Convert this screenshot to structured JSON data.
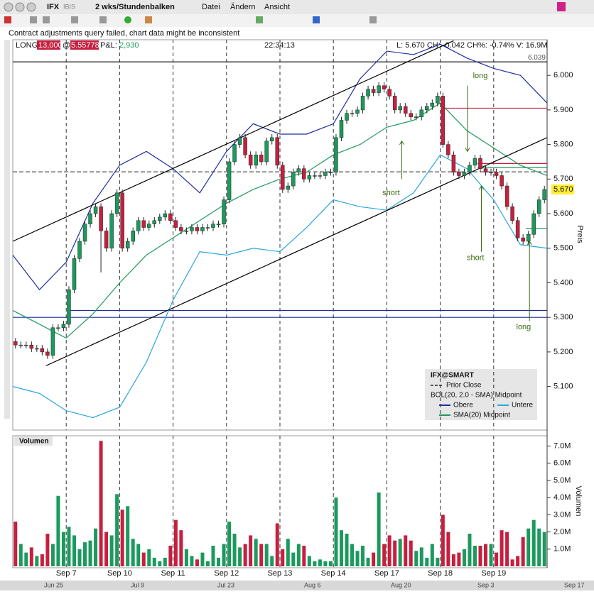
{
  "toolbar": {
    "symbol": "IFX",
    "exchange": "IBIS",
    "period": "2 wks/Stundenbalken",
    "menu": [
      "Datei",
      "Ändern",
      "Ansicht"
    ]
  },
  "message": "Contract adjustments query failed, chart data might be inconsistent",
  "position": {
    "side": "LONG",
    "quantity": "13,000",
    "at": "@",
    "price": "5.55778",
    "pnl_label": "P&L:",
    "pnl": "2,930"
  },
  "time": "22:34:13",
  "quote": "L: 5.670 CH: -0.042 CH%: -0.74% V: 16.9M",
  "chart_data": [
    {
      "type": "candlestick",
      "y_axis_label": "Preis",
      "xlim": [
        0,
        100
      ],
      "ylim": [
        4.974,
        6.103
      ],
      "xticks": [
        {
          "value": 10,
          "label": "Sep 7"
        },
        {
          "value": 20,
          "label": "Sep 10"
        },
        {
          "value": 30,
          "label": "Sep 11"
        },
        {
          "value": 40,
          "label": "Sep 12"
        },
        {
          "value": 50,
          "label": "Sep 13"
        },
        {
          "value": 60,
          "label": "Sep 14"
        },
        {
          "value": 70,
          "label": "Sep 17"
        },
        {
          "value": 80,
          "label": "Sep 18"
        },
        {
          "value": 90,
          "label": "Sep 19"
        }
      ],
      "yticks": [
        {
          "value": 5.1,
          "label": "5.100"
        },
        {
          "value": 5.2,
          "label": "5.200"
        },
        {
          "value": 5.3,
          "label": "5.300"
        },
        {
          "value": 5.4,
          "label": "5.400"
        },
        {
          "value": 5.5,
          "label": "5.500"
        },
        {
          "value": 5.6,
          "label": "5.600"
        },
        {
          "value": 5.7,
          "label": "5.700"
        },
        {
          "value": 5.8,
          "label": "5.800"
        },
        {
          "value": 5.9,
          "label": "5.900"
        },
        {
          "value": 6.0,
          "label": "6.000"
        }
      ],
      "up_color": "#1b9a5e",
      "down_color": "#c61f3f",
      "open": [
        5.23,
        5.22,
        5.22,
        5.22,
        5.21,
        5.21,
        5.2,
        5.19,
        5.27,
        5.27,
        5.28,
        5.38,
        5.47,
        5.52,
        5.57,
        5.6,
        5.62,
        5.55,
        5.5,
        5.6,
        5.66,
        5.5,
        5.52,
        5.55,
        5.58,
        5.56,
        5.57,
        5.58,
        5.59,
        5.6,
        5.58,
        5.56,
        5.55,
        5.55,
        5.56,
        5.55,
        5.56,
        5.56,
        5.57,
        5.57,
        5.64,
        5.75,
        5.8,
        5.82,
        5.77,
        5.74,
        5.77,
        5.75,
        5.81,
        5.82,
        5.74,
        5.67,
        5.68,
        5.72,
        5.73,
        5.7,
        5.71,
        5.71,
        5.71,
        5.72,
        5.72,
        5.82,
        5.87,
        5.89,
        5.89,
        5.9,
        5.94,
        5.96,
        5.95,
        5.97,
        5.96,
        5.94,
        5.9,
        5.91,
        5.89,
        5.88,
        5.88,
        5.9,
        5.91,
        5.92,
        5.94,
        5.8,
        5.77,
        5.72,
        5.71,
        5.72,
        5.74,
        5.76,
        5.73,
        5.72,
        5.72,
        5.71,
        5.68,
        5.62,
        5.58,
        5.53,
        5.52,
        5.54,
        5.6,
        5.64
      ],
      "high": [
        5.24,
        5.23,
        5.23,
        5.23,
        5.22,
        5.22,
        5.21,
        5.28,
        5.28,
        5.29,
        5.39,
        5.48,
        5.53,
        5.58,
        5.61,
        5.63,
        5.63,
        5.56,
        5.61,
        5.67,
        5.67,
        5.53,
        5.56,
        5.59,
        5.59,
        5.58,
        5.59,
        5.6,
        5.61,
        5.61,
        5.59,
        5.57,
        5.56,
        5.57,
        5.57,
        5.57,
        5.57,
        5.58,
        5.58,
        5.65,
        5.76,
        5.81,
        5.83,
        5.83,
        5.78,
        5.78,
        5.78,
        5.82,
        5.83,
        5.83,
        5.75,
        5.69,
        5.73,
        5.74,
        5.74,
        5.72,
        5.72,
        5.72,
        5.73,
        5.73,
        5.83,
        5.88,
        5.9,
        5.9,
        5.91,
        5.95,
        5.97,
        5.97,
        5.98,
        5.98,
        5.97,
        5.95,
        5.92,
        5.92,
        5.9,
        5.89,
        5.91,
        5.92,
        5.93,
        5.95,
        5.95,
        5.81,
        5.78,
        5.73,
        5.73,
        5.75,
        5.77,
        5.77,
        5.74,
        5.73,
        5.73,
        5.72,
        5.69,
        5.63,
        5.59,
        5.54,
        5.55,
        5.61,
        5.65,
        5.68
      ],
      "low": [
        5.21,
        5.21,
        5.21,
        5.2,
        5.2,
        5.19,
        5.18,
        5.18,
        5.26,
        5.26,
        5.27,
        5.37,
        5.46,
        5.51,
        5.56,
        5.59,
        5.43,
        5.49,
        5.49,
        5.59,
        5.49,
        5.49,
        5.51,
        5.54,
        5.55,
        5.55,
        5.56,
        5.57,
        5.58,
        5.57,
        5.55,
        5.54,
        5.54,
        5.54,
        5.54,
        5.54,
        5.55,
        5.55,
        5.56,
        5.56,
        5.63,
        5.74,
        5.79,
        5.76,
        5.73,
        5.73,
        5.74,
        5.74,
        5.8,
        5.73,
        5.66,
        5.66,
        5.67,
        5.71,
        5.69,
        5.69,
        5.7,
        5.7,
        5.7,
        5.71,
        5.71,
        5.81,
        5.86,
        5.88,
        5.88,
        5.89,
        5.93,
        5.94,
        5.94,
        5.95,
        5.93,
        5.89,
        5.89,
        5.88,
        5.87,
        5.87,
        5.87,
        5.89,
        5.9,
        5.91,
        5.79,
        5.76,
        5.71,
        5.7,
        5.7,
        5.71,
        5.73,
        5.72,
        5.71,
        5.71,
        5.7,
        5.67,
        5.61,
        5.57,
        5.52,
        5.51,
        5.51,
        5.53,
        5.59,
        5.63
      ],
      "close": [
        5.22,
        5.22,
        5.22,
        5.21,
        5.21,
        5.2,
        5.19,
        5.27,
        5.27,
        5.28,
        5.38,
        5.47,
        5.52,
        5.57,
        5.6,
        5.62,
        5.55,
        5.5,
        5.6,
        5.66,
        5.5,
        5.52,
        5.55,
        5.58,
        5.56,
        5.57,
        5.58,
        5.59,
        5.6,
        5.58,
        5.56,
        5.55,
        5.55,
        5.56,
        5.55,
        5.56,
        5.56,
        5.57,
        5.57,
        5.64,
        5.75,
        5.8,
        5.82,
        5.77,
        5.74,
        5.77,
        5.75,
        5.81,
        5.82,
        5.74,
        5.67,
        5.68,
        5.72,
        5.73,
        5.7,
        5.71,
        5.71,
        5.71,
        5.72,
        5.72,
        5.82,
        5.87,
        5.89,
        5.89,
        5.9,
        5.94,
        5.96,
        5.95,
        5.97,
        5.96,
        5.94,
        5.9,
        5.91,
        5.89,
        5.88,
        5.88,
        5.9,
        5.91,
        5.92,
        5.94,
        5.8,
        5.77,
        5.72,
        5.71,
        5.72,
        5.74,
        5.76,
        5.73,
        5.72,
        5.72,
        5.71,
        5.68,
        5.62,
        5.58,
        5.53,
        5.52,
        5.54,
        5.6,
        5.64,
        5.67
      ],
      "series": [
        {
          "name": "Obere",
          "color": "#1c2f9e",
          "x": [
            0,
            5,
            10,
            15,
            20,
            25,
            30,
            35,
            40,
            45,
            50,
            55,
            60,
            65,
            70,
            75,
            80,
            85,
            90,
            95,
            100
          ],
          "values": [
            5.48,
            5.38,
            5.46,
            5.63,
            5.74,
            5.78,
            5.73,
            5.66,
            5.78,
            5.86,
            5.83,
            5.83,
            5.86,
            5.99,
            6.07,
            6.06,
            6.09,
            6.05,
            6.02,
            6.0,
            5.92
          ]
        },
        {
          "name": "Untere",
          "color": "#2aa6de",
          "x": [
            0,
            5,
            10,
            15,
            20,
            25,
            30,
            35,
            40,
            45,
            50,
            55,
            60,
            65,
            70,
            75,
            80,
            85,
            90,
            95,
            100
          ],
          "values": [
            5.1,
            5.08,
            5.03,
            5.01,
            5.04,
            5.17,
            5.35,
            5.49,
            5.48,
            5.5,
            5.49,
            5.56,
            5.64,
            5.62,
            5.61,
            5.66,
            5.77,
            5.73,
            5.64,
            5.51,
            5.5
          ]
        },
        {
          "name": "SMA(20) Midpoint",
          "color": "#1e9a5a",
          "x": [
            0,
            5,
            10,
            15,
            20,
            25,
            30,
            35,
            40,
            45,
            50,
            55,
            60,
            65,
            70,
            75,
            80,
            85,
            90,
            95,
            100
          ],
          "values": [
            5.32,
            5.28,
            5.24,
            5.31,
            5.4,
            5.48,
            5.53,
            5.58,
            5.63,
            5.67,
            5.7,
            5.72,
            5.77,
            5.8,
            5.85,
            5.87,
            5.92,
            5.84,
            5.79,
            5.74,
            5.71
          ]
        }
      ],
      "trend_lines": [
        {
          "color": "#000000",
          "x": [
            0,
            82.5
          ],
          "values": [
            5.52,
            6.1
          ]
        },
        {
          "color": "#000000",
          "x": [
            6.2,
            100
          ],
          "values": [
            5.16,
            5.82
          ]
        }
      ],
      "hlines": [
        {
          "value": 6.039,
          "label": "6.039",
          "color": "#000000",
          "x": [
            0,
            100
          ]
        },
        {
          "value": 5.32,
          "color": "#1c2f9e",
          "x": [
            10.5,
            100
          ]
        },
        {
          "value": 5.3,
          "color": "#1c2f9e",
          "x": [
            0,
            100
          ]
        },
        {
          "value": 5.905,
          "color": "#c61f3f",
          "x": [
            80.5,
            100
          ]
        },
        {
          "value": 5.745,
          "color": "#c61f3f",
          "x": [
            87,
            100
          ]
        },
        {
          "value": 5.733,
          "color": "#1e9a5a",
          "x": [
            87,
            100
          ]
        },
        {
          "value": 5.557,
          "color": "#1e9a5a",
          "x": [
            96,
            100
          ]
        },
        {
          "value": 5.721,
          "name": "Prior Close",
          "color": "#555555",
          "dashed": true,
          "x": [
            0,
            100
          ]
        }
      ],
      "last_price": {
        "value": 5.67,
        "label": "5.670"
      },
      "annotations": [
        {
          "text": "long",
          "x": 87.5,
          "y": 5.998,
          "arrow_x": 85.1,
          "arrow": [
            5.97,
            5.78
          ]
        },
        {
          "text": "short",
          "x": 70.8,
          "y": 5.659,
          "arrow_x": 72.8,
          "arrow": [
            5.7,
            5.81
          ]
        },
        {
          "text": "short",
          "x": 86.6,
          "y": 5.472,
          "arrow_x": 87.7,
          "arrow": [
            5.49,
            5.68
          ]
        },
        {
          "text": "long",
          "x": 95.6,
          "y": 5.271,
          "arrow_x": 96.7,
          "arrow": [
            5.29,
            5.52
          ]
        }
      ],
      "legend": {
        "title": "IFX@SMART",
        "group": "BOL(20, 2.0 - SMA) Midpoint"
      }
    },
    {
      "type": "bar",
      "title": "Volumen",
      "y_axis_label": "Volumen",
      "xlim": [
        0,
        100
      ],
      "ylim": [
        0,
        7.6
      ],
      "yticks": [
        {
          "value": 1,
          "label": "1.0M"
        },
        {
          "value": 2,
          "label": "2.0M"
        },
        {
          "value": 3,
          "label": "3.0M"
        },
        {
          "value": 4,
          "label": "4.0M"
        },
        {
          "value": 5,
          "label": "5.0M"
        },
        {
          "value": 6,
          "label": "6.0M"
        },
        {
          "value": 7,
          "label": "7.0M"
        }
      ],
      "values": [
        2.6,
        1.3,
        0.8,
        1.1,
        0.6,
        0.7,
        1.9,
        1.3,
        4.1,
        2.0,
        2.3,
        1.8,
        1.0,
        1.4,
        1.5,
        2.2,
        7.3,
        2.0,
        1.8,
        4.2,
        3.3,
        3.5,
        1.6,
        1.3,
        0.8,
        1.0,
        0.5,
        0.3,
        0.5,
        1.2,
        2.7,
        2.1,
        1.0,
        0.6,
        0.4,
        0.8,
        0.3,
        1.2,
        0.5,
        1.3,
        2.6,
        1.9,
        1.1,
        1.3,
        1.8,
        1.6,
        1.3,
        1.3,
        0.6,
        2.5,
        1.0,
        1.6,
        0.8,
        1.3,
        1.2,
        0.6,
        0.3,
        0.4,
        0.3,
        0.3,
        4.0,
        2.1,
        1.9,
        1.3,
        0.9,
        1.2,
        0.5,
        0.8,
        4.3,
        1.3,
        1.8,
        1.5,
        1.6,
        1.8,
        1.5,
        0.9,
        1.1,
        0.5,
        1.3,
        0.5,
        3.0,
        2.0,
        0.7,
        0.8,
        1.0,
        1.9,
        1.2,
        1.2,
        1.3,
        1.3,
        0.8,
        2.1,
        2.0,
        0.4,
        0.6,
        1.7,
        2.2,
        2.7,
        2.2,
        2.0
      ]
    }
  ],
  "scrollbar": {
    "labels": [
      "Jun 25",
      "Jul 9",
      "Jul 23",
      "Aug 6",
      "Aug 20",
      "Sep 3",
      "Sep 17"
    ]
  }
}
